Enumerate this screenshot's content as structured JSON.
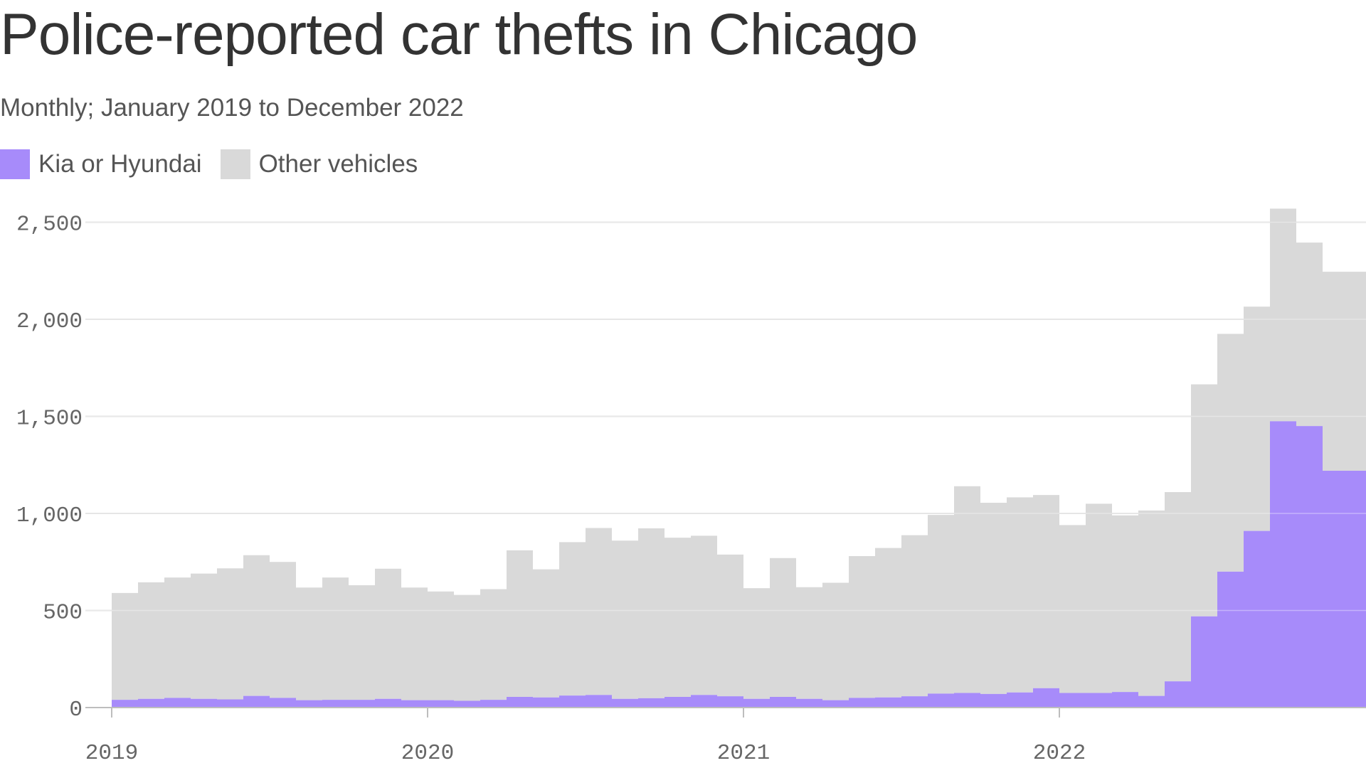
{
  "title": "Police-reported car thefts in Chicago",
  "subtitle": "Monthly; January 2019 to December 2022",
  "legend": [
    {
      "label": "Kia or Hyundai",
      "color": "#a78bfa"
    },
    {
      "label": "Other vehicles",
      "color": "#d9d9d9"
    }
  ],
  "chart_data": {
    "type": "area",
    "stacked": true,
    "x_start": "2019-01",
    "x_end": "2022-12",
    "xticks": [
      "2019",
      "2020",
      "2021",
      "2022"
    ],
    "yticks": [
      "0",
      "500",
      "1,000",
      "1,500",
      "2,000",
      "2,500"
    ],
    "ylim": [
      0,
      2580
    ],
    "grid": true,
    "legend_position": "top-left",
    "series": [
      {
        "name": "Kia or Hyundai",
        "color": "#a78bfa",
        "values": [
          40,
          45,
          50,
          45,
          42,
          60,
          50,
          38,
          40,
          40,
          45,
          38,
          38,
          35,
          40,
          55,
          52,
          62,
          65,
          45,
          48,
          55,
          65,
          58,
          45,
          55,
          45,
          38,
          50,
          52,
          58,
          72,
          75,
          70,
          78,
          100,
          75,
          75,
          80,
          60,
          135,
          470,
          700,
          910,
          1475,
          1450,
          1220,
          1220
        ]
      },
      {
        "name": "Other vehicles",
        "color": "#d9d9d9",
        "values": [
          550,
          600,
          620,
          645,
          675,
          725,
          700,
          580,
          630,
          590,
          670,
          580,
          560,
          545,
          570,
          755,
          660,
          790,
          860,
          815,
          875,
          820,
          820,
          730,
          570,
          715,
          575,
          605,
          730,
          770,
          830,
          920,
          1065,
          985,
          1005,
          995,
          865,
          975,
          910,
          955,
          975,
          1195,
          1225,
          1155,
          1095,
          945,
          1025,
          1025
        ]
      }
    ],
    "x_labels": {
      "2019": 0,
      "2020": 12,
      "2021": 24,
      "2022": 36
    }
  }
}
